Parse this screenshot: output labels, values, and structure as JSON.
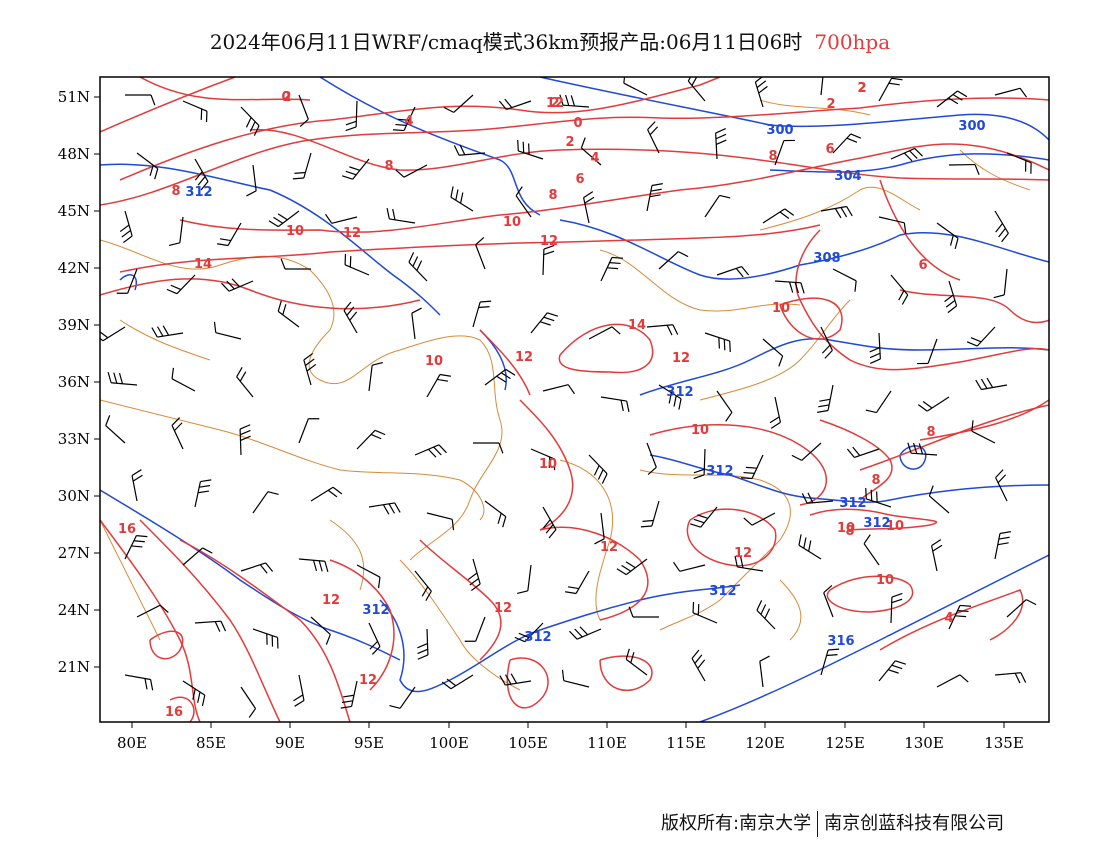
{
  "header": {
    "title": "2024年06月11日WRF/cmaq模式36km预报产品:06月11日06时",
    "level": "700hpa"
  },
  "colors": {
    "temperature_contour": "#e23b3b",
    "height_contour": "#1f49d8",
    "boundary": "#d98a3a",
    "wind_barb": "#000000",
    "level_text": "#e23b3b"
  },
  "map": {
    "x_ticks": [
      "80E",
      "85E",
      "90E",
      "95E",
      "100E",
      "105E",
      "110E",
      "115E",
      "120E",
      "125E",
      "130E",
      "135E"
    ],
    "y_ticks": [
      "51N",
      "48N",
      "45N",
      "42N",
      "39N",
      "36N",
      "33N",
      "30N",
      "27N",
      "24N",
      "21N"
    ],
    "temperature_labels": [
      "2",
      "4",
      "8",
      "2",
      "0",
      "2",
      "4",
      "6",
      "8",
      "8",
      "6",
      "2",
      "8",
      "10",
      "12",
      "10",
      "12",
      "14",
      "14",
      "12",
      "12",
      "10",
      "10",
      "16",
      "16",
      "12",
      "12",
      "12",
      "12",
      "12",
      "10",
      "10",
      "8",
      "8",
      "8",
      "6",
      "4",
      "10",
      "10",
      "10",
      "0",
      "12",
      "2",
      "2"
    ],
    "height_labels": [
      "300",
      "300",
      "312",
      "304",
      "308",
      "312",
      "312",
      "312",
      "312",
      "312",
      "312",
      "312",
      "316"
    ]
  },
  "footer": {
    "copyright": "版权所有:南京大学",
    "company": "南京创蓝科技有限公司"
  }
}
